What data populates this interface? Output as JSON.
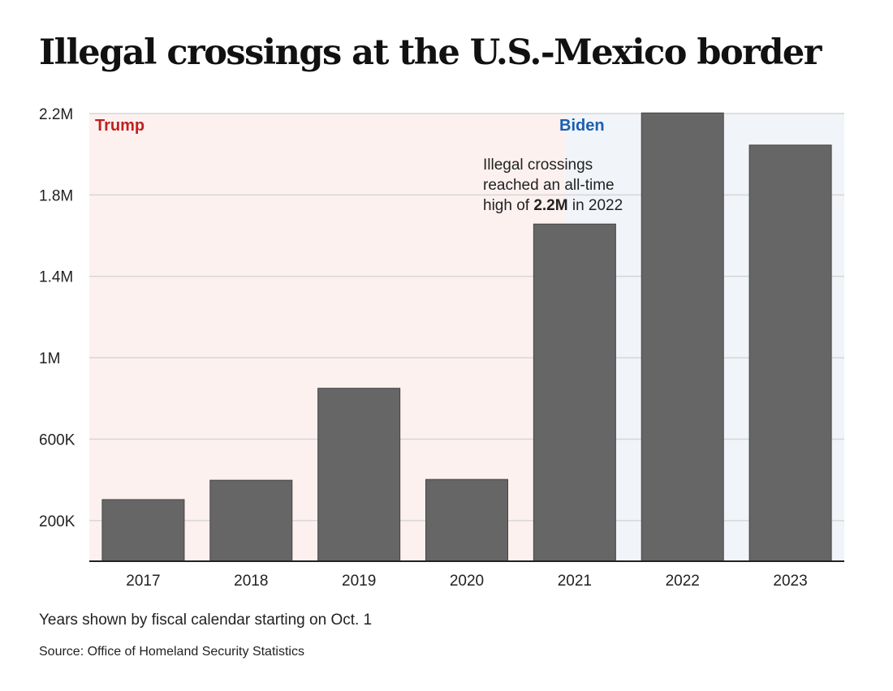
{
  "chart_data": {
    "type": "bar",
    "title": "Illegal crossings at the U.S.-Mexico border",
    "categories": [
      "2017",
      "2018",
      "2019",
      "2020",
      "2021",
      "2022",
      "2023"
    ],
    "values": [
      303000,
      398000,
      850000,
      402000,
      1657000,
      2203000,
      2045000
    ],
    "ylim": [
      0,
      2200000
    ],
    "yticks": [
      200000,
      600000,
      1000000,
      1400000,
      1800000,
      2200000
    ],
    "ytick_labels": [
      "200K",
      "600K",
      "1M",
      "1.4M",
      "1.8M",
      "2.2M"
    ],
    "grid": true,
    "xlabel": "",
    "ylabel": "",
    "regions": [
      {
        "label": "Trump",
        "from": "2017",
        "to": "2021 (mid)",
        "color": "#c0211f",
        "fill": "#fdf1f0"
      },
      {
        "label": "Biden",
        "from": "2021 (mid)",
        "to": "2023",
        "color": "#1a5fb0",
        "fill": "#f1f4f9"
      }
    ],
    "annotation": {
      "line1": "Illegal crossings",
      "line2": "reached an all-time",
      "line3_pre": "high of ",
      "line3_bold": "2.2M",
      "line3_post": " in 2022"
    },
    "bar_color": "#666666"
  },
  "notes": {
    "fiscal": "Years shown by fiscal calendar starting on Oct. 1",
    "source": "Source: Office of Homeland Security Statistics"
  }
}
